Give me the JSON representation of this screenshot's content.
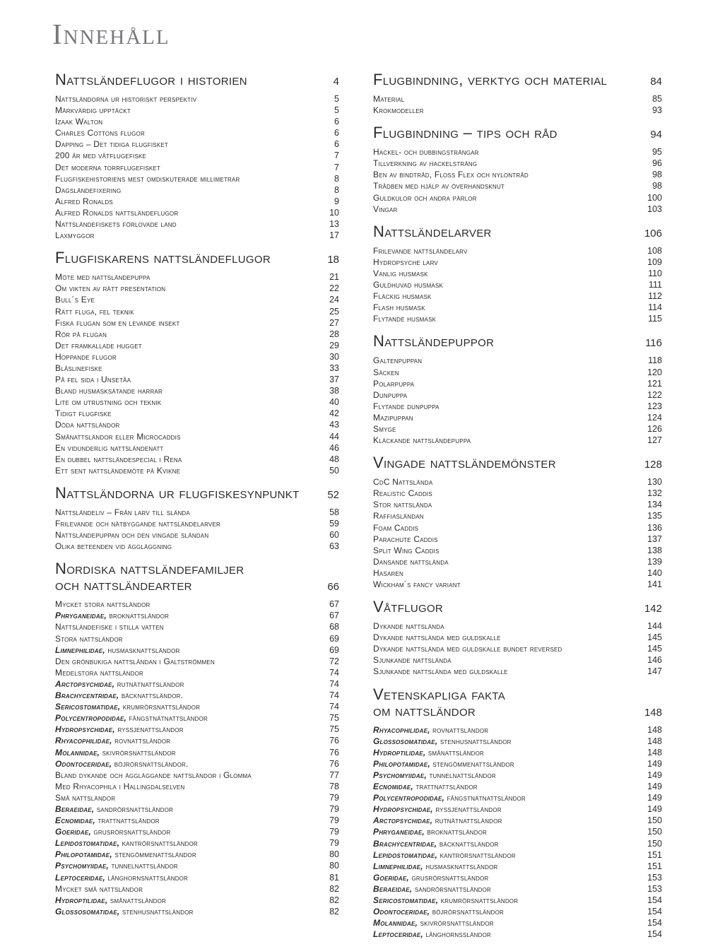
{
  "title": "Innehåll",
  "colors": {
    "background": "#ffffff",
    "text": "#2b2b2b",
    "title": "#76777b"
  },
  "columns": {
    "left": [
      {
        "heading": [
          "Nattsländeflugor i historien"
        ],
        "page": "4",
        "items": [
          {
            "text": "Nattsländorna ur historiskt perspektiv",
            "page": "5"
          },
          {
            "text": "Märkvärdig upptäckt",
            "page": "5"
          },
          {
            "text": "Izaak Walton",
            "page": "6"
          },
          {
            "text": "Charles Cottons flugor",
            "page": "6"
          },
          {
            "text": "Dapping – Det tidiga flugfisket",
            "page": "6"
          },
          {
            "text": "200 år med våtflugefiske",
            "page": "7"
          },
          {
            "text": "Det moderna torrflugefisket",
            "page": "7"
          },
          {
            "text": "Flugfiskehistoriens mest omdiskuterade millimetrar",
            "page": "8"
          },
          {
            "text": "Dagsländefixering",
            "page": "8"
          },
          {
            "text": "Alfred Ronalds",
            "page": "9"
          },
          {
            "text": "Alfred Ronalds nattsländeflugor",
            "page": "10"
          },
          {
            "text": "Nattsländefiskets förlovade land",
            "page": "13"
          },
          {
            "text": "Laxmyggor",
            "page": "17"
          }
        ]
      },
      {
        "heading": [
          "Flugfiskarens nattsländeflugor"
        ],
        "page": "18",
        "items": [
          {
            "text": "Möte med nattsländepuppa",
            "page": "21"
          },
          {
            "text": "Om vikten av rätt presentation",
            "page": "22"
          },
          {
            "text": "Bull´s Eye",
            "page": "24"
          },
          {
            "text": "Rätt fluga, fel teknik",
            "page": "25"
          },
          {
            "text": "Fiska flugan som en levande insekt",
            "page": "27"
          },
          {
            "text": "Rör på flugan",
            "page": "28"
          },
          {
            "text": "Det framkallade hugget",
            "page": "29"
          },
          {
            "text": "Hoppande flugor",
            "page": "30"
          },
          {
            "text": "Blåslinefiske",
            "page": "33"
          },
          {
            "text": "På fel sida i Unsetåa",
            "page": "37"
          },
          {
            "text": "Bland husmasksätande harrar",
            "page": "38"
          },
          {
            "text": "Lite om utrustning och teknik",
            "page": "40"
          },
          {
            "text": "Tidigt flugfiske",
            "page": "42"
          },
          {
            "text": "Döda nattsländor",
            "page": "43"
          },
          {
            "text": "Smånattsländor eller Microcaddis",
            "page": "44"
          },
          {
            "text": "En vidunderlig nattsländenatt",
            "page": "46"
          },
          {
            "text": "En dubbel nattsländespecial i Rena",
            "page": "48"
          },
          {
            "text": "Ett sent nattsländemöte på Kvikne",
            "page": "50"
          }
        ]
      },
      {
        "heading": [
          "Nattsländorna ur flugfiskesynpunkt"
        ],
        "page": "52",
        "items": [
          {
            "text": "Nattsländeliv – Från larv till slända",
            "page": "58"
          },
          {
            "text": "Frilevande och nätbyggande nattsländelarver",
            "page": "59"
          },
          {
            "text": "Nattsländepuppan och den vingade sländan",
            "page": "60"
          },
          {
            "text": "Olika beteenden vid äggläggning",
            "page": "63"
          }
        ]
      },
      {
        "heading": [
          "Nordiska nattsländefamiljer",
          "och nattsländearter"
        ],
        "page": "66",
        "items": [
          {
            "text": "Mycket stora nattsländor",
            "page": "67"
          },
          {
            "em": "Phryganeidae,",
            "text": " broknattsländor",
            "page": "67"
          },
          {
            "text": "Nattsländefiske i stilla vatten",
            "page": "68"
          },
          {
            "text": "Stora nattsländor",
            "page": "69"
          },
          {
            "em": "Limnephilidae,",
            "text": " husmasknattsländor",
            "page": "69"
          },
          {
            "text": "Den grönbukiga nattsländan i Galtströmmen",
            "page": "72"
          },
          {
            "text": "Medelstora nattsländor",
            "page": "74"
          },
          {
            "em": "Arctopsychidae,",
            "text": " rutnätnattsländor",
            "page": "74"
          },
          {
            "em": "Brachycentridae,",
            "text": " bäcknattsländor.",
            "page": "74"
          },
          {
            "em": "Sericostomatidae,",
            "text": " krumrörsnattsländor",
            "page": "74"
          },
          {
            "em": "Polycentropodidae,",
            "text": " fångstnätnattsländor",
            "page": "75"
          },
          {
            "em": "Hydropsychidae,",
            "text": " ryssjenattsländor",
            "page": "75"
          },
          {
            "em": "Rhyacophilidae,",
            "text": " rovnattsländor",
            "page": "76"
          },
          {
            "em": "Molannidae,",
            "text": " skivrörsnattsländor",
            "page": "76"
          },
          {
            "em": "Odontoceridae,",
            "text": " böjrörsnattsländor.",
            "page": "76"
          },
          {
            "text": "Bland dykande och äggläggande nattsländor i Glomma",
            "page": "77"
          },
          {
            "text": "Med Rhyacophila i Hallingdalselven",
            "page": "78"
          },
          {
            "text": "Små nattsländor",
            "page": "79"
          },
          {
            "em": "Beraeidae,",
            "text": " sandrörsnattsländor",
            "page": "79"
          },
          {
            "em": "Ecnomidae,",
            "text": " trattnattsländor",
            "page": "79"
          },
          {
            "em": "Goeridae,",
            "text": " grusrörsnattsländor",
            "page": "79"
          },
          {
            "em": "Lepidostomatidae,",
            "text": " kantrörsnattsländor",
            "page": "79"
          },
          {
            "em": "Philopotamidae,",
            "text": " stengömmenattsländor",
            "page": "80"
          },
          {
            "em": "Psychomyiidae,",
            "text": " tunnelnattsländor",
            "page": "80"
          },
          {
            "em": "Leptoceridae,",
            "text": " långhornsnattsländor",
            "page": "81"
          },
          {
            "text": "Mycket små nattsländor",
            "page": "82"
          },
          {
            "em": "Hydroptilidae,",
            "text": " smånattsländor",
            "page": "82"
          },
          {
            "em": "Glossosomatidae,",
            "text": " stenhusnattsländor",
            "page": "82"
          }
        ]
      }
    ],
    "right": [
      {
        "heading": [
          "Flugbindning, verktyg och material"
        ],
        "page": "84",
        "items": [
          {
            "text": "Material",
            "page": "85"
          },
          {
            "text": "Krokmodeller",
            "page": "93"
          }
        ]
      },
      {
        "heading": [
          "Flugbindning – tips och råd"
        ],
        "page": "94",
        "items": [
          {
            "text": "Hackel- och dubbingsträngar",
            "page": "95"
          },
          {
            "text": "Tillverkning av hackelsträng",
            "page": "96"
          },
          {
            "text": "Ben av bindtråd, Floss Flex och nylontråd",
            "page": "98"
          },
          {
            "text": "Trådben med hjälp av överhandsknut",
            "page": "98"
          },
          {
            "text": "Guldkulor och andra pärlor",
            "page": "100"
          },
          {
            "text": "Vingar",
            "page": "103"
          }
        ]
      },
      {
        "heading": [
          "Nattsländelarver"
        ],
        "page": "106",
        "items": [
          {
            "text": "Frilevande nattsländelarv",
            "page": "108"
          },
          {
            "text": "Hydropsyche larv",
            "page": "109"
          },
          {
            "text": "Vanlig husmask",
            "page": "110"
          },
          {
            "text": "Guldhuvad husmask",
            "page": "111"
          },
          {
            "text": "Fläckig husmask",
            "page": "112"
          },
          {
            "text": "Flash husmask",
            "page": "114"
          },
          {
            "text": "Flytande husmask",
            "page": "115"
          }
        ]
      },
      {
        "heading": [
          "Nattsländepuppor"
        ],
        "page": "116",
        "items": [
          {
            "text": "Galtenpuppan",
            "page": "118"
          },
          {
            "text": "Säcken",
            "page": "120"
          },
          {
            "text": "Polarpuppa",
            "page": "121"
          },
          {
            "text": "Dunpuppa",
            "page": "122"
          },
          {
            "text": "Flytande dunpuppa",
            "page": "123"
          },
          {
            "text": "Mazipuppan",
            "page": "124"
          },
          {
            "text": "Smyge",
            "page": "126"
          },
          {
            "text": "Kläckande nattsländepuppa",
            "page": "127"
          }
        ]
      },
      {
        "heading": [
          "Vingade nattsländemönster"
        ],
        "page": "128",
        "items": [
          {
            "text": "CdC Nattslända",
            "page": "130"
          },
          {
            "text": "Realistic Caddis",
            "page": "132"
          },
          {
            "text": "Stor nattslända",
            "page": "134"
          },
          {
            "text": "Raffiasländan",
            "page": "135"
          },
          {
            "text": "Foam Caddis",
            "page": "136"
          },
          {
            "text": "Parachute Caddis",
            "page": "137"
          },
          {
            "text": "Split Wing Caddis",
            "page": "138"
          },
          {
            "text": "Dansande nattslända",
            "page": "139"
          },
          {
            "text": "Hasaren",
            "page": "140"
          },
          {
            "text": "Wickham´s fancy variant",
            "page": "141"
          }
        ]
      },
      {
        "heading": [
          "Våtflugor"
        ],
        "page": "142",
        "items": [
          {
            "text": "Dykande nattslända",
            "page": "144"
          },
          {
            "text": "Dykande nattslända med guldskalle",
            "page": "145"
          },
          {
            "text": "Dykande nattslända med guldskalle bundet reversed",
            "page": "145"
          },
          {
            "text": "Sjunkande nattslända",
            "page": "146"
          },
          {
            "text": "Sjunkande nattslända med guldskalle",
            "page": "147"
          }
        ]
      },
      {
        "heading": [
          "Vetenskapliga fakta",
          "om nattsländor"
        ],
        "page": "148",
        "items": [
          {
            "em": "Rhyacophilidae,",
            "text": " rovnattsländor",
            "page": "148"
          },
          {
            "em": "Glossosomatidae,",
            "text": " stenhusnattsländor",
            "page": "148"
          },
          {
            "em": "Hydroptilidae,",
            "text": " smånattsländor",
            "page": "148"
          },
          {
            "em": "Philopotamidae,",
            "text": " stengömmenattsländor",
            "page": "149"
          },
          {
            "em": "Psychomyiidae,",
            "text": " tunnelnattsländor",
            "page": "149"
          },
          {
            "em": "Ecnomidae,",
            "text": " trattnattsländor",
            "page": "149"
          },
          {
            "em": "Polycentropodidae,",
            "text": " fångstnätnattsländor",
            "page": "149"
          },
          {
            "em": "Hydropsychidae,",
            "text": " ryssjenattsländor",
            "page": "149"
          },
          {
            "em": "Arctopsychidae,",
            "text": " rutnätnattsländor",
            "page": "150"
          },
          {
            "em": "Phryganeidae,",
            "text": " broknattsländor",
            "page": "150"
          },
          {
            "em": "Brachycentridae,",
            "text": " bäcknattsländor",
            "page": "150"
          },
          {
            "em": "Lepidostomatidae,",
            "text": " kantrörsnattsländor",
            "page": "151"
          },
          {
            "em": "Limnephilidae,",
            "text": " husmasknattsländor",
            "page": "151"
          },
          {
            "em": "Goeridae,",
            "text": " grusrörsnattsländor",
            "page": "153"
          },
          {
            "em": "Beraeidae,",
            "text": " sandrörsnattsländor",
            "page": "153"
          },
          {
            "em": "Sericostomatidae,",
            "text": " krumrörsnattsländor",
            "page": "154"
          },
          {
            "em": "Odontoceridae,",
            "text": " böjrörsnattsländor",
            "page": "154"
          },
          {
            "em": "Molannidae,",
            "text": " skivrörsnattsländor",
            "page": "154"
          },
          {
            "em": "Leptoceridae,",
            "text": " långhornssländor",
            "page": "154"
          }
        ]
      }
    ]
  }
}
